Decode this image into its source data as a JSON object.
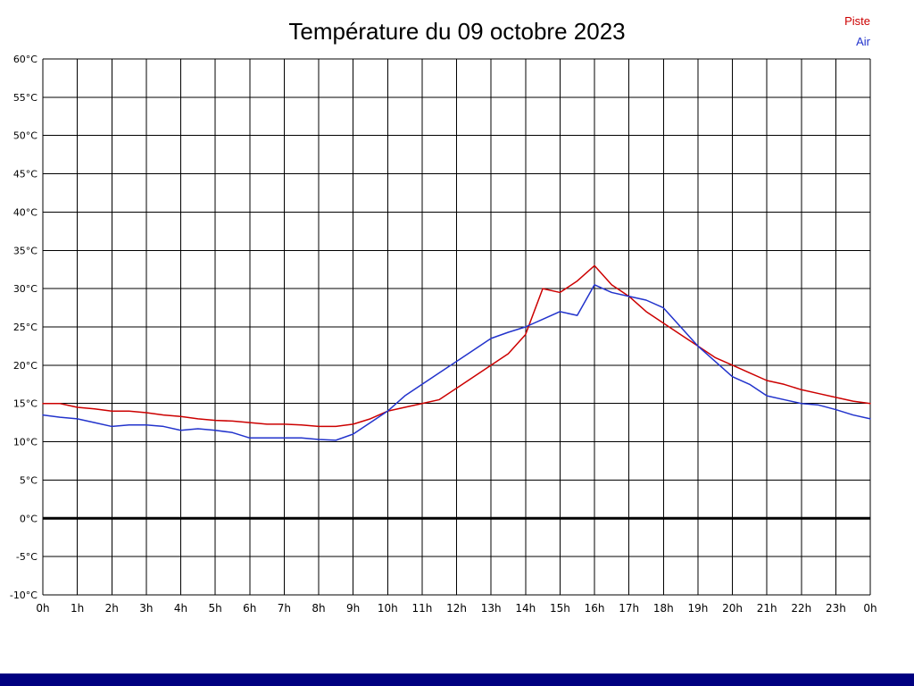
{
  "title": "Température du 09 octobre 2023",
  "legend": {
    "items": [
      {
        "label": "Piste",
        "color": "#cc0000"
      },
      {
        "label": "Air",
        "color": "#2233cc"
      }
    ]
  },
  "chart_data": {
    "type": "line",
    "title": "Température du 09 octobre 2023",
    "xlabel": "",
    "ylabel": "°C",
    "ylim": [
      -10,
      60
    ],
    "y_tick_step": 5,
    "y_tick_labels": [
      "60°C",
      "55°C",
      "50°C",
      "45°C",
      "40°C",
      "35°C",
      "30°C",
      "25°C",
      "20°C",
      "15°C",
      "10°C",
      "5°C",
      "0°C",
      "-5°C",
      "-10°C"
    ],
    "x_range_hours": [
      0,
      24
    ],
    "x_tick_labels": [
      "0h",
      "1h",
      "2h",
      "3h",
      "4h",
      "5h",
      "6h",
      "7h",
      "8h",
      "9h",
      "10h",
      "11h",
      "12h",
      "13h",
      "14h",
      "15h",
      "16h",
      "17h",
      "18h",
      "19h",
      "20h",
      "21h",
      "22h",
      "23h",
      "0h"
    ],
    "grid": true,
    "legend_position": "top-right",
    "zero_line": {
      "value": 0,
      "color": "#000000",
      "width": 3
    },
    "series": [
      {
        "name": "Piste",
        "color": "#cc0000",
        "x_start": 0,
        "x_step": 0.5,
        "values": [
          15.0,
          15.0,
          14.5,
          14.3,
          14.0,
          14.0,
          13.8,
          13.5,
          13.3,
          13.0,
          12.8,
          12.7,
          12.5,
          12.3,
          12.3,
          12.2,
          12.0,
          12.0,
          12.3,
          13.0,
          14.0,
          14.5,
          15.0,
          15.5,
          17.0,
          18.5,
          20.0,
          21.5,
          24.0,
          30.0,
          29.5,
          31.0,
          33.0,
          30.5,
          29.0,
          27.0,
          25.5,
          24.0,
          22.5,
          21.0,
          20.0,
          19.0,
          18.0,
          17.5,
          16.8,
          16.3,
          15.8,
          15.3,
          15.0
        ]
      },
      {
        "name": "Air",
        "color": "#2233cc",
        "x_start": 0,
        "x_step": 0.5,
        "values": [
          13.5,
          13.2,
          13.0,
          12.5,
          12.0,
          12.2,
          12.2,
          12.0,
          11.5,
          11.7,
          11.5,
          11.2,
          10.5,
          10.5,
          10.5,
          10.5,
          10.3,
          10.2,
          11.0,
          12.5,
          14.0,
          16.0,
          17.5,
          19.0,
          20.5,
          22.0,
          23.5,
          24.3,
          25.0,
          26.0,
          27.0,
          26.5,
          30.5,
          29.5,
          29.0,
          28.5,
          27.5,
          25.0,
          22.5,
          20.5,
          18.5,
          17.5,
          16.0,
          15.5,
          15.0,
          14.8,
          14.2,
          13.5,
          13.0
        ]
      }
    ]
  },
  "footer": {
    "bar_color": "#000080"
  }
}
